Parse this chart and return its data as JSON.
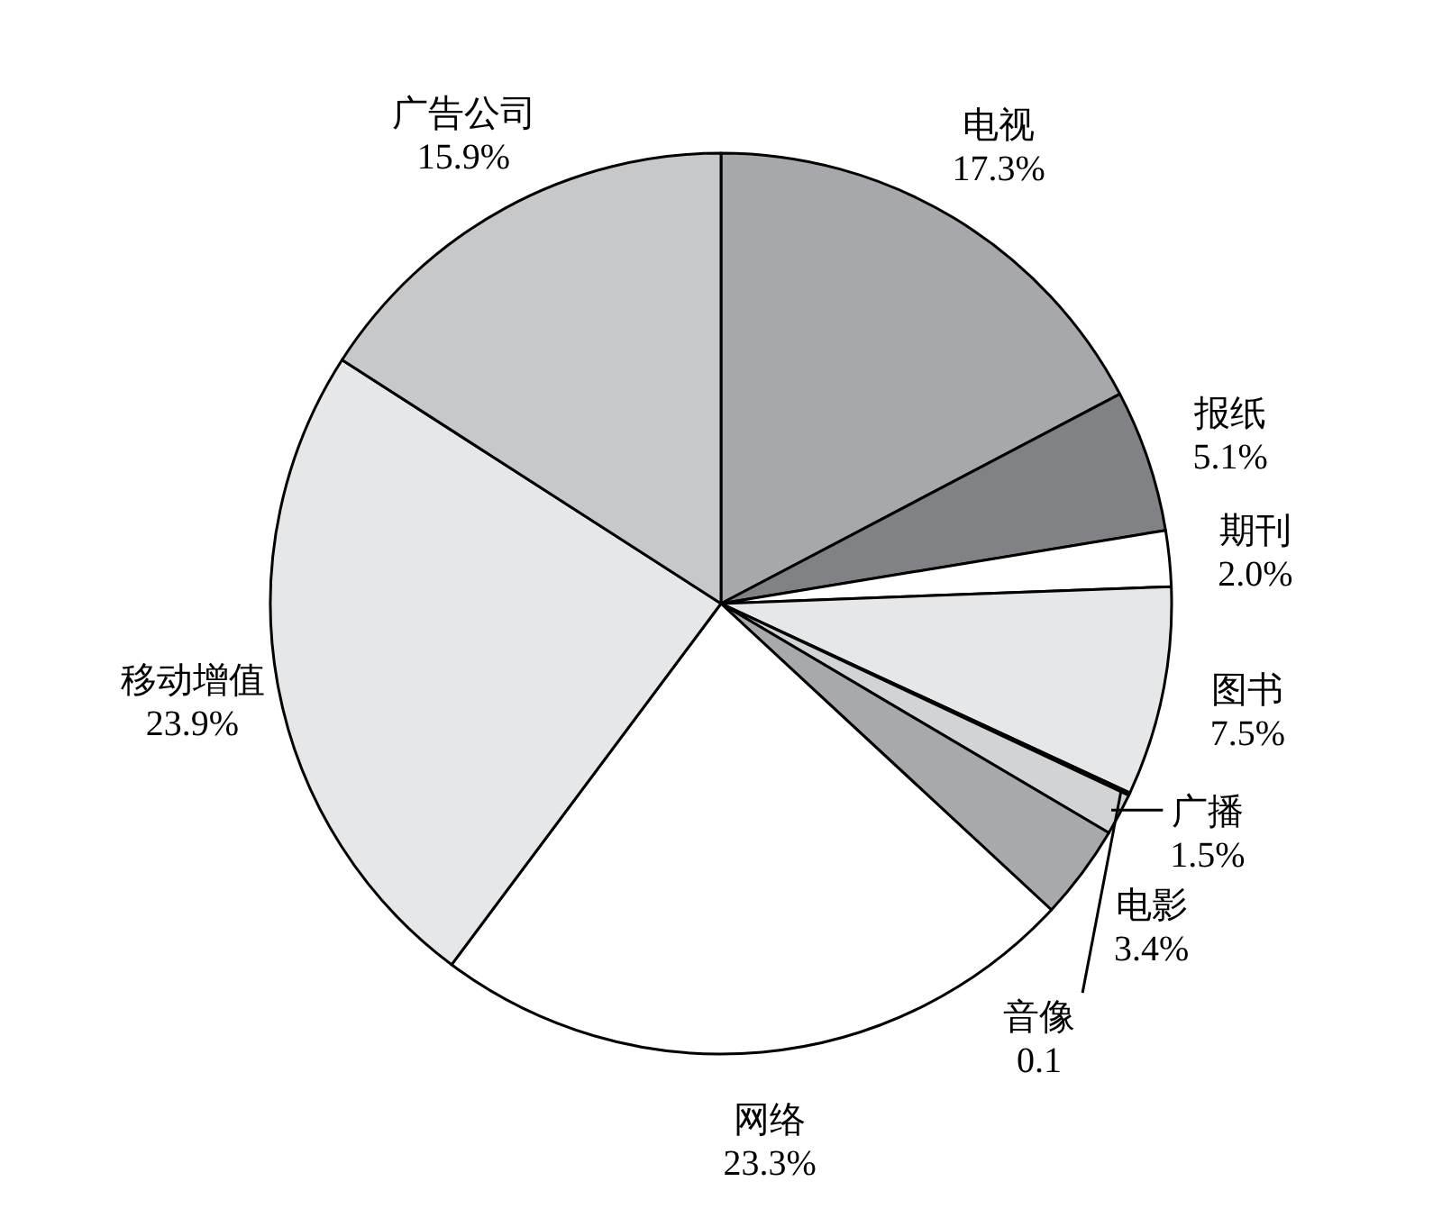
{
  "chart_data": {
    "type": "pie",
    "categories": [
      "电视",
      "报纸",
      "期刊",
      "图书",
      "音像",
      "广播",
      "电影",
      "网络",
      "移动增值",
      "广告公司"
    ],
    "values": [
      17.3,
      5.1,
      2.0,
      7.5,
      0.1,
      1.5,
      3.4,
      23.3,
      23.9,
      15.9
    ],
    "colors": [
      "#a6a8ab",
      "#808285",
      "#ffffff",
      "#e6e7e8",
      "#a0a2a5",
      "#d1d3d4",
      "#a7a9ac",
      "#ffffff",
      "#e6e7e8",
      "#c7c8ca"
    ],
    "value_labels": [
      "17.3%",
      "5.1%",
      "2.0%",
      "7.5%",
      "0.1",
      "1.5%",
      "3.4%",
      "23.3%",
      "23.9%",
      "15.9%"
    ]
  }
}
